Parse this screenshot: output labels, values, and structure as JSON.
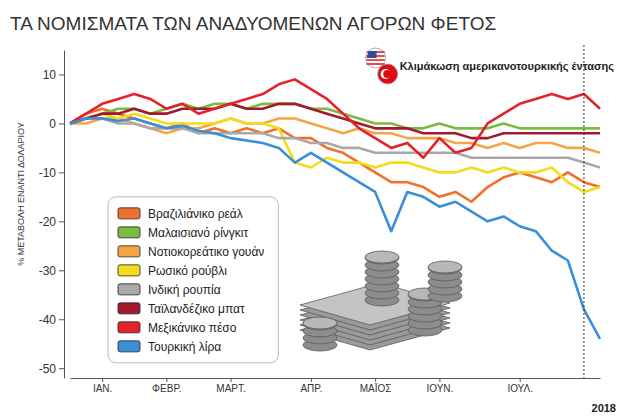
{
  "chart_data": {
    "type": "line",
    "title": "ΤΑ ΝΟΜΙΣΜΑΤΑ ΤΩΝ ΑΝΑΔΥΟΜΕΝΩΝ ΑΓΟΡΩΝ ΦΕΤΟΣ",
    "ylabel": "% ΜΕΤΑΒΟΛΗ ΕΝΑΝΤΙ ΔΟΛΑΡΙΟΥ",
    "xlabel": "2018",
    "categories": [
      null,
      null,
      "ΙΑΝ.",
      null,
      null,
      null,
      "ΦΕΒΡ.",
      null,
      null,
      null,
      "ΜΑΡΤ.",
      null,
      null,
      null,
      null,
      "ΑΠΡ.",
      null,
      null,
      null,
      "ΜΑΪΟΣ",
      null,
      null,
      null,
      "ΙΟΥΝ.",
      null,
      null,
      null,
      null,
      "ΙΟΥΛ.",
      null,
      null,
      null,
      null,
      null
    ],
    "series": [
      {
        "name": "Βραζιλιάνικο ρεάλ",
        "color": "#f0702e",
        "values": [
          0,
          2,
          3,
          2,
          1,
          0,
          -1,
          0,
          -2,
          -1,
          -2,
          -1,
          -2,
          -1,
          -3,
          -3,
          -5,
          -6,
          -8,
          -10,
          -12,
          -12,
          -13,
          -15,
          -14,
          -16,
          -13,
          -11,
          -10,
          -11,
          -12,
          -10,
          -12,
          -13
        ]
      },
      {
        "name": "Μαλαισιανό ρίνγκιτ",
        "color": "#7dba42",
        "values": [
          0,
          1,
          2,
          3,
          3,
          2,
          3,
          4,
          3,
          4,
          4,
          3,
          4,
          4,
          4,
          3,
          3,
          2,
          1,
          0,
          0,
          -1,
          -1,
          0,
          -1,
          -1,
          -1,
          0,
          -1,
          -1,
          -1,
          -1,
          -1,
          -1
        ]
      },
      {
        "name": "Νοτιοκορεάτικο γουάν",
        "color": "#f6a545",
        "values": [
          0,
          0,
          1,
          1,
          0,
          -1,
          -2,
          -1,
          -1,
          0,
          1,
          0,
          0,
          1,
          1,
          0,
          -1,
          -2,
          -1,
          -2,
          -2,
          -3,
          -3,
          -3,
          -4,
          -4,
          -5,
          -4,
          -5,
          -4,
          -4,
          -5,
          -5,
          -6
        ]
      },
      {
        "name": "Ρωσικό ρούβλι",
        "color": "#f3dc1c",
        "values": [
          0,
          1,
          2,
          1,
          2,
          1,
          0,
          0,
          0,
          0,
          1,
          0,
          0,
          -1,
          -8,
          -9,
          -7,
          -8,
          -8,
          -9,
          -8,
          -8,
          -9,
          -10,
          -10,
          -9,
          -10,
          -9,
          -10,
          -10,
          -9,
          -12,
          -14,
          -13
        ]
      },
      {
        "name": "Ινδική ρουπία",
        "color": "#a9a9a9",
        "values": [
          0,
          1,
          1,
          0,
          0,
          -1,
          -1,
          -1,
          -2,
          -2,
          -2,
          -2,
          -2,
          -3,
          -3,
          -4,
          -4,
          -5,
          -5,
          -6,
          -6,
          -6,
          -6,
          -6,
          -6,
          -7,
          -7,
          -7,
          -7,
          -7,
          -7,
          -7,
          -8,
          -9
        ]
      },
      {
        "name": "Ταϊλανδέζικο μπατ",
        "color": "#a3192d",
        "values": [
          0,
          1,
          2,
          2,
          3,
          2,
          2,
          3,
          3,
          3,
          4,
          3,
          3,
          4,
          4,
          3,
          2,
          1,
          0,
          -1,
          -1,
          -1,
          -2,
          -2,
          -2,
          -3,
          -3,
          -2,
          -2,
          -2,
          -2,
          -2,
          -2,
          -2
        ]
      },
      {
        "name": "Μεξικάνικο πέσο",
        "color": "#e3232a",
        "values": [
          0,
          2,
          4,
          5,
          6,
          5,
          3,
          4,
          2,
          3,
          4,
          5,
          6,
          8,
          9,
          7,
          5,
          2,
          -1,
          -3,
          -5,
          -4,
          -7,
          -3,
          -6,
          -5,
          0,
          2,
          4,
          5,
          6,
          5,
          6,
          3
        ]
      },
      {
        "name": "Τουρκική λίρα",
        "color": "#3b8fd9",
        "values": [
          0,
          1,
          1,
          0.5,
          1,
          0,
          -1,
          -0.5,
          -1.5,
          -2,
          -3,
          -3.5,
          -4,
          -5,
          -8,
          -6,
          -8,
          -10,
          -12,
          -14,
          -22,
          -14,
          -15,
          -17,
          -16,
          -18,
          -20,
          -19,
          -21,
          -22,
          -26,
          -28,
          -38,
          -44
        ]
      }
    ],
    "ylim": [
      -52,
      15
    ],
    "yticks": [
      10,
      0,
      -10,
      -20,
      -30,
      -40,
      -50
    ],
    "grid": false,
    "legend": "left",
    "annotations": [
      {
        "text": "Κλιμάκωση αμερικανοτουρκικής έντασης",
        "x": 32
      }
    ]
  }
}
